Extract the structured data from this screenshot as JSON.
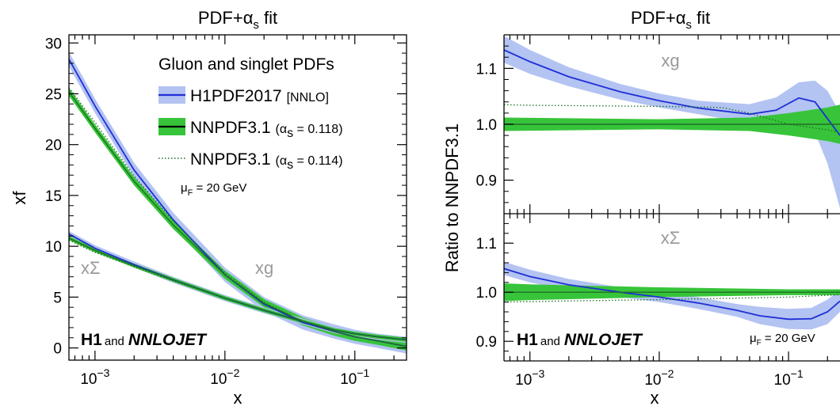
{
  "colors": {
    "h1_line": "#1f2fd6",
    "h1_band": "#b3c3f2",
    "nnpdf_band": "#37c43a",
    "nnpdf_line": "#1f6e24",
    "dotted": "#1f6e24",
    "label_gray": "#9a9a9a"
  },
  "chart_data": [
    {
      "type": "line",
      "title": "PDF+αs fit",
      "title_main": "PDF+α",
      "title_sub": "s",
      "title_end": " fit",
      "xlabel": "x",
      "ylabel": "xf",
      "x_scale": "log",
      "xlim": [
        0.00063,
        0.25
      ],
      "ylim": [
        -1.2,
        30.8
      ],
      "y_ticks": [
        0,
        5,
        10,
        15,
        20,
        25,
        30
      ],
      "y_tick_labels": [
        "0",
        "5",
        "10",
        "15",
        "20",
        "25",
        "30"
      ],
      "x_ticks": [
        0.001,
        0.01,
        0.1
      ],
      "legend": {
        "header": "Gluon and singlet PDFs",
        "entries": [
          {
            "label": "H1PDF2017",
            "note": "[NNLO]"
          },
          {
            "label": "NNPDF3.1",
            "note_pre": "(α",
            "note_sub": "s",
            "note_post": " = 0.118)"
          },
          {
            "label": "NNPDF3.1",
            "note_pre": "(α",
            "note_sub": "s",
            "note_post": " = 0.114)"
          }
        ]
      },
      "scale_label": {
        "pre": "μ",
        "sub": "F",
        "post": " = 20 GeV"
      },
      "curve_labels": {
        "gluon": "xg",
        "singlet": "xΣ"
      },
      "brand": {
        "h1": "H1",
        "and": "and",
        "nnlojet": "NNLOJET"
      },
      "series": [
        {
          "name": "H1PDF2017 xg",
          "x": [
            0.00063,
            0.001,
            0.002,
            0.004,
            0.01,
            0.02,
            0.04,
            0.07,
            0.1,
            0.15,
            0.25
          ],
          "y": [
            28.4,
            23.8,
            17.5,
            12.6,
            7.2,
            4.3,
            2.5,
            1.6,
            1.1,
            0.7,
            0.15
          ],
          "band": 0.7
        },
        {
          "name": "NNPDF3.1 (αs = 0.118) xg",
          "x": [
            0.00063,
            0.001,
            0.002,
            0.004,
            0.01,
            0.02,
            0.04,
            0.07,
            0.1,
            0.15,
            0.25
          ],
          "y": [
            25.2,
            21.6,
            16.4,
            12.1,
            7.2,
            4.4,
            2.6,
            1.6,
            1.1,
            0.7,
            0.15
          ],
          "band": 0.4
        },
        {
          "name": "NNPDF3.1 (αs = 0.114) xg",
          "x": [
            0.00063,
            0.001,
            0.002,
            0.004,
            0.01,
            0.02,
            0.04,
            0.07,
            0.1,
            0.15,
            0.25
          ],
          "y": [
            25.6,
            22.2,
            16.9,
            12.5,
            7.4,
            4.5,
            2.6,
            1.6,
            1.1,
            0.7,
            0.15
          ]
        },
        {
          "name": "H1PDF2017 xΣ",
          "x": [
            0.00063,
            0.001,
            0.002,
            0.004,
            0.01,
            0.02,
            0.04,
            0.07,
            0.1,
            0.15,
            0.25
          ],
          "y": [
            11.2,
            9.8,
            8.2,
            6.7,
            4.9,
            3.7,
            2.6,
            1.75,
            1.4,
            1.1,
            0.8
          ],
          "band": 0.3
        },
        {
          "name": "NNPDF3.1 (αs = 0.118) xΣ",
          "x": [
            0.00063,
            0.001,
            0.002,
            0.004,
            0.01,
            0.02,
            0.04,
            0.07,
            0.1,
            0.15,
            0.25
          ],
          "y": [
            10.8,
            9.6,
            8.1,
            6.7,
            4.9,
            3.7,
            2.6,
            1.75,
            1.4,
            1.1,
            0.8
          ],
          "band": 0.2
        },
        {
          "name": "NNPDF3.1 (αs = 0.114) xΣ",
          "x": [
            0.00063,
            0.001,
            0.002,
            0.004,
            0.01,
            0.02,
            0.04,
            0.07,
            0.1,
            0.15,
            0.25
          ],
          "y": [
            10.6,
            9.4,
            8.0,
            6.6,
            4.9,
            3.7,
            2.6,
            1.75,
            1.4,
            1.1,
            0.8
          ]
        }
      ]
    },
    {
      "type": "line",
      "title": "PDF+αs fit",
      "title_main": "PDF+α",
      "title_sub": "s",
      "title_end": " fit",
      "xlabel": "x",
      "ylabel": "Ratio to NNPDF3.1",
      "x_scale": "log",
      "xlim": [
        0.00063,
        0.25
      ],
      "panels": [
        {
          "label": "xg",
          "ylim": [
            0.84,
            1.16
          ],
          "y_ticks": [
            0.9,
            1.0,
            1.1
          ],
          "y_tick_labels": [
            "0.9",
            "1.0",
            "1.1"
          ],
          "series": [
            {
              "name": "H1PDF2017",
              "x": [
                0.00063,
                0.001,
                0.002,
                0.005,
                0.01,
                0.02,
                0.05,
                0.08,
                0.12,
                0.16,
                0.2,
                0.25
              ],
              "y": [
                1.133,
                1.112,
                1.085,
                1.058,
                1.042,
                1.029,
                1.018,
                1.025,
                1.047,
                1.04,
                1.01,
                0.98
              ],
              "band_lo": [
                1.11,
                1.09,
                1.068,
                1.044,
                1.03,
                1.018,
                1.002,
                1.0,
                1.01,
                0.985,
                0.93,
                0.85
              ],
              "band_hi": [
                1.158,
                1.133,
                1.102,
                1.072,
                1.055,
                1.042,
                1.036,
                1.048,
                1.075,
                1.078,
                1.06,
                1.02
              ]
            },
            {
              "name": "NNPDF3.1 (αs = 0.118)",
              "x": [
                0.00063,
                0.01,
                0.05,
                0.1,
                0.2,
                0.25
              ],
              "y": [
                1.0,
                1.0,
                1.0,
                1.0,
                1.0,
                1.0
              ],
              "band_lo": [
                0.988,
                0.991,
                0.988,
                0.98,
                0.97,
                0.965
              ],
              "band_hi": [
                1.012,
                1.009,
                1.012,
                1.02,
                1.03,
                1.035
              ]
            },
            {
              "name": "NNPDF3.1 (αs = 0.114)",
              "x": [
                0.00063,
                0.001,
                0.01,
                0.03,
                0.05,
                0.1,
                0.2,
                0.25
              ],
              "y": [
                1.035,
                1.034,
                1.032,
                1.03,
                1.02,
                1.0,
                0.99,
                0.985
              ]
            }
          ]
        },
        {
          "label": "xΣ",
          "ylim": [
            0.86,
            1.16
          ],
          "y_ticks": [
            0.9,
            1.0,
            1.1
          ],
          "y_tick_labels": [
            "0.9",
            "1.0",
            "1.1"
          ],
          "series": [
            {
              "name": "H1PDF2017",
              "x": [
                0.00063,
                0.001,
                0.002,
                0.005,
                0.01,
                0.02,
                0.04,
                0.06,
                0.1,
                0.15,
                0.2,
                0.25
              ],
              "y": [
                1.048,
                1.032,
                1.015,
                1.0,
                0.99,
                0.978,
                0.963,
                0.952,
                0.945,
                0.946,
                0.96,
                0.982
              ],
              "band_lo": [
                1.035,
                1.02,
                1.004,
                0.99,
                0.98,
                0.966,
                0.95,
                0.935,
                0.925,
                0.924,
                0.935,
                0.96
              ],
              "band_hi": [
                1.062,
                1.046,
                1.027,
                1.01,
                1.0,
                0.99,
                0.976,
                0.97,
                0.966,
                0.968,
                0.985,
                1.005
              ]
            },
            {
              "name": "NNPDF3.1 (αs = 0.118)",
              "x": [
                0.00063,
                0.001,
                0.01,
                0.1,
                0.25
              ],
              "y": [
                1.0,
                1.0,
                1.0,
                1.0,
                1.0
              ],
              "band_lo": [
                0.982,
                0.984,
                0.99,
                0.994,
                0.994
              ],
              "band_hi": [
                1.018,
                1.016,
                1.01,
                1.006,
                1.006
              ]
            },
            {
              "name": "NNPDF3.1 (αs = 0.114)",
              "x": [
                0.00063,
                0.001,
                0.01,
                0.1,
                0.25
              ],
              "y": [
                0.98,
                0.981,
                0.985,
                0.99,
                0.995
              ]
            }
          ]
        }
      ],
      "scale_label": {
        "pre": "μ",
        "sub": "F",
        "post": " = 20 GeV"
      },
      "brand": {
        "h1": "H1",
        "and": "and",
        "nnlojet": "NNLOJET"
      }
    }
  ]
}
